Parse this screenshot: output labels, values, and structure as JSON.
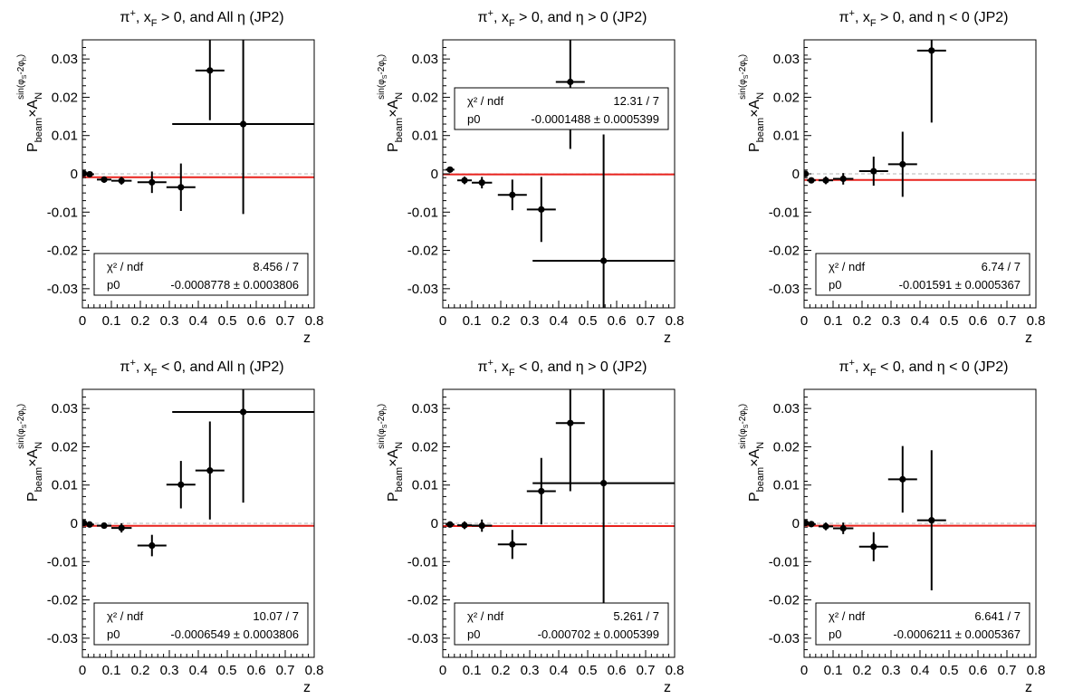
{
  "chart_data": [
    {
      "type": "scatter",
      "title": "π⁺, x_F > 0, and All η (JP2)",
      "title_parts": {
        "particle": "π",
        "particle_sup": "+",
        "var": "x",
        "var_sub": "F",
        "rest": " > 0, and All η (JP2)"
      },
      "xlabel": "z",
      "ylabel": "P_beam×A_N^{sin(φ_S-2φ_h)}",
      "xlim": [
        0,
        0.8
      ],
      "ylim": [
        -0.035,
        0.035
      ],
      "x_ticks": [
        "0",
        "0.1",
        "0.2",
        "0.3",
        "0.4",
        "0.5",
        "0.6",
        "0.7",
        "0.8"
      ],
      "y_ticks": [
        "-0.03",
        "-0.02",
        "-0.01",
        "0",
        "0.01",
        "0.02",
        "0.03"
      ],
      "points": [
        {
          "x": 0.005,
          "y": 0.0001,
          "xerr": 0.005,
          "yerr": 0.0004
        },
        {
          "x": 0.025,
          "y": -0.0001,
          "xerr": 0.015,
          "yerr": 0.0006
        },
        {
          "x": 0.075,
          "y": -0.0015,
          "xerr": 0.025,
          "yerr": 0.0008
        },
        {
          "x": 0.135,
          "y": -0.0018,
          "xerr": 0.035,
          "yerr": 0.001
        },
        {
          "x": 0.24,
          "y": -0.0022,
          "xerr": 0.05,
          "yerr": 0.0028
        },
        {
          "x": 0.34,
          "y": -0.0035,
          "xerr": 0.05,
          "yerr": 0.0062
        },
        {
          "x": 0.44,
          "y": 0.027,
          "xerr": 0.05,
          "yerr": 0.013
        },
        {
          "x": 0.555,
          "y": 0.013,
          "xerr": 0.245,
          "yerr": 0.0235
        }
      ],
      "fit_value": -0.0008778,
      "stats": {
        "chi2_label": "χ² / ndf",
        "chi2_value": "8.456 / 7",
        "p0_label": "p0",
        "p0_value": "-0.0008778 ± 0.0003806",
        "position": "bottom-left"
      }
    },
    {
      "type": "scatter",
      "title": "π⁺, x_F > 0, and η > 0 (JP2)",
      "title_parts": {
        "particle": "π",
        "particle_sup": "+",
        "var": "x",
        "var_sub": "F",
        "rest": " > 0, and η > 0 (JP2)"
      },
      "xlabel": "z",
      "ylabel": "P_beam×A_N^{sin(φ_S-2φ_h)}",
      "xlim": [
        0,
        0.8
      ],
      "ylim": [
        -0.035,
        0.035
      ],
      "x_ticks": [
        "0",
        "0.1",
        "0.2",
        "0.3",
        "0.4",
        "0.5",
        "0.6",
        "0.7",
        "0.8"
      ],
      "y_ticks": [
        "-0.03",
        "-0.02",
        "-0.01",
        "0",
        "0.01",
        "0.02",
        "0.03"
      ],
      "points": [
        {
          "x": 0.025,
          "y": 0.0011,
          "xerr": 0.015,
          "yerr": 0.0006
        },
        {
          "x": 0.075,
          "y": -0.0017,
          "xerr": 0.025,
          "yerr": 0.001
        },
        {
          "x": 0.135,
          "y": -0.0023,
          "xerr": 0.035,
          "yerr": 0.0015
        },
        {
          "x": 0.24,
          "y": -0.0055,
          "xerr": 0.05,
          "yerr": 0.004
        },
        {
          "x": 0.34,
          "y": -0.0093,
          "xerr": 0.05,
          "yerr": 0.0085
        },
        {
          "x": 0.44,
          "y": 0.024,
          "xerr": 0.05,
          "yerr": 0.0175
        },
        {
          "x": 0.555,
          "y": -0.0227,
          "xerr": 0.245,
          "yerr": 0.033
        }
      ],
      "fit_value": -0.0001488,
      "stats": {
        "chi2_label": "χ² / ndf",
        "chi2_value": "12.31 / 7",
        "p0_label": "p0",
        "p0_value": "-0.0001488 ± 0.0005399",
        "position": "top-left"
      }
    },
    {
      "type": "scatter",
      "title": "π⁺, x_F > 0, and η < 0 (JP2)",
      "title_parts": {
        "particle": "π",
        "particle_sup": "+",
        "var": "x",
        "var_sub": "F",
        "rest": " > 0, and η < 0 (JP2)"
      },
      "xlabel": "z",
      "ylabel": "P_beam×A_N^{sin(φ_S-2φ_h)}",
      "xlim": [
        0,
        0.8
      ],
      "ylim": [
        -0.035,
        0.035
      ],
      "x_ticks": [
        "0",
        "0.1",
        "0.2",
        "0.3",
        "0.4",
        "0.5",
        "0.6",
        "0.7",
        "0.8"
      ],
      "y_ticks": [
        "-0.03",
        "-0.02",
        "-0.01",
        "0",
        "0.01",
        "0.02",
        "0.03"
      ],
      "points": [
        {
          "x": 0.005,
          "y": 0.0,
          "xerr": 0.005,
          "yerr": 0.0004
        },
        {
          "x": 0.025,
          "y": -0.0017,
          "xerr": 0.015,
          "yerr": 0.0006
        },
        {
          "x": 0.075,
          "y": -0.0017,
          "xerr": 0.025,
          "yerr": 0.001
        },
        {
          "x": 0.135,
          "y": -0.0013,
          "xerr": 0.035,
          "yerr": 0.0015
        },
        {
          "x": 0.24,
          "y": 0.0007,
          "xerr": 0.05,
          "yerr": 0.0038
        },
        {
          "x": 0.34,
          "y": 0.0025,
          "xerr": 0.05,
          "yerr": 0.0085
        },
        {
          "x": 0.44,
          "y": 0.0322,
          "xerr": 0.05,
          "yerr": 0.0188
        }
      ],
      "fit_value": -0.001591,
      "stats": {
        "chi2_label": "χ² / ndf",
        "chi2_value": "6.74 / 7",
        "p0_label": "p0",
        "p0_value": "-0.001591 ± 0.0005367",
        "position": "bottom-left"
      }
    },
    {
      "type": "scatter",
      "title": "π⁺, x_F < 0, and All η (JP2)",
      "title_parts": {
        "particle": "π",
        "particle_sup": "+",
        "var": "x",
        "var_sub": "F",
        "rest": " < 0, and All η (JP2)"
      },
      "xlabel": "z",
      "ylabel": "P_beam×A_N^{sin(φ_S-2φ_h)}",
      "xlim": [
        0,
        0.8
      ],
      "ylim": [
        -0.035,
        0.035
      ],
      "x_ticks": [
        "0",
        "0.1",
        "0.2",
        "0.3",
        "0.4",
        "0.5",
        "0.6",
        "0.7",
        "0.8"
      ],
      "y_ticks": [
        "-0.03",
        "-0.02",
        "-0.01",
        "0",
        "0.01",
        "0.02",
        "0.03"
      ],
      "points": [
        {
          "x": 0.005,
          "y": 0.0001,
          "xerr": 0.005,
          "yerr": 0.0004
        },
        {
          "x": 0.025,
          "y": -0.0003,
          "xerr": 0.015,
          "yerr": 0.0005
        },
        {
          "x": 0.075,
          "y": -0.0006,
          "xerr": 0.025,
          "yerr": 0.0008
        },
        {
          "x": 0.135,
          "y": -0.0012,
          "xerr": 0.035,
          "yerr": 0.0012
        },
        {
          "x": 0.24,
          "y": -0.0058,
          "xerr": 0.05,
          "yerr": 0.0028
        },
        {
          "x": 0.34,
          "y": 0.0101,
          "xerr": 0.05,
          "yerr": 0.0062
        },
        {
          "x": 0.44,
          "y": 0.0138,
          "xerr": 0.05,
          "yerr": 0.0128
        },
        {
          "x": 0.555,
          "y": 0.0291,
          "xerr": 0.245,
          "yerr": 0.0237
        }
      ],
      "fit_value": -0.0006549,
      "stats": {
        "chi2_label": "χ² / ndf",
        "chi2_value": "10.07 / 7",
        "p0_label": "p0",
        "p0_value": "-0.0006549 ± 0.0003806",
        "position": "bottom-left"
      }
    },
    {
      "type": "scatter",
      "title": "π⁺, x_F < 0, and η > 0 (JP2)",
      "title_parts": {
        "particle": "π",
        "particle_sup": "+",
        "var": "x",
        "var_sub": "F",
        "rest": " < 0, and η > 0 (JP2)"
      },
      "xlabel": "z",
      "ylabel": "P_beam×A_N^{sin(φ_S-2φ_h)}",
      "xlim": [
        0,
        0.8
      ],
      "ylim": [
        -0.035,
        0.035
      ],
      "x_ticks": [
        "0",
        "0.1",
        "0.2",
        "0.3",
        "0.4",
        "0.5",
        "0.6",
        "0.7",
        "0.8"
      ],
      "y_ticks": [
        "-0.03",
        "-0.02",
        "-0.01",
        "0",
        "0.01",
        "0.02",
        "0.03"
      ],
      "points": [
        {
          "x": 0.025,
          "y": -0.0003,
          "xerr": 0.015,
          "yerr": 0.0006
        },
        {
          "x": 0.075,
          "y": -0.0005,
          "xerr": 0.025,
          "yerr": 0.001
        },
        {
          "x": 0.135,
          "y": -0.0006,
          "xerr": 0.035,
          "yerr": 0.0016
        },
        {
          "x": 0.24,
          "y": -0.0055,
          "xerr": 0.05,
          "yerr": 0.0038
        },
        {
          "x": 0.34,
          "y": 0.0084,
          "xerr": 0.05,
          "yerr": 0.0087
        },
        {
          "x": 0.44,
          "y": 0.0262,
          "xerr": 0.05,
          "yerr": 0.0178
        },
        {
          "x": 0.555,
          "y": 0.0105,
          "xerr": 0.245,
          "yerr": 0.0328
        }
      ],
      "fit_value": -0.000702,
      "stats": {
        "chi2_label": "χ² / ndf",
        "chi2_value": "5.261 / 7",
        "p0_label": "p0",
        "p0_value": "-0.000702 ± 0.0005399",
        "position": "bottom-left"
      }
    },
    {
      "type": "scatter",
      "title": "π⁺, x_F < 0, and η < 0 (JP2)",
      "title_parts": {
        "particle": "π",
        "particle_sup": "+",
        "var": "x",
        "var_sub": "F",
        "rest": " < 0, and η < 0 (JP2)"
      },
      "xlabel": "z",
      "ylabel": "P_beam×A_N^{sin(φ_S-2φ_h)}",
      "xlim": [
        0,
        0.8
      ],
      "ylim": [
        -0.035,
        0.035
      ],
      "x_ticks": [
        "0",
        "0.1",
        "0.2",
        "0.3",
        "0.4",
        "0.5",
        "0.6",
        "0.7",
        "0.8"
      ],
      "y_ticks": [
        "-0.03",
        "-0.02",
        "-0.01",
        "0",
        "0.01",
        "0.02",
        "0.03"
      ],
      "points": [
        {
          "x": 0.005,
          "y": 0.0001,
          "xerr": 0.005,
          "yerr": 0.0004
        },
        {
          "x": 0.025,
          "y": -0.0002,
          "xerr": 0.015,
          "yerr": 0.0006
        },
        {
          "x": 0.075,
          "y": -0.0008,
          "xerr": 0.025,
          "yerr": 0.001
        },
        {
          "x": 0.135,
          "y": -0.0013,
          "xerr": 0.035,
          "yerr": 0.0015
        },
        {
          "x": 0.24,
          "y": -0.0061,
          "xerr": 0.05,
          "yerr": 0.0038
        },
        {
          "x": 0.34,
          "y": 0.0115,
          "xerr": 0.05,
          "yerr": 0.0087
        },
        {
          "x": 0.44,
          "y": 0.0008,
          "xerr": 0.05,
          "yerr": 0.0183
        }
      ],
      "fit_value": -0.0006211,
      "stats": {
        "chi2_label": "χ² / ndf",
        "chi2_value": "6.641 / 7",
        "p0_label": "p0",
        "p0_value": "-0.0006211 ± 0.0005367",
        "position": "bottom-left"
      }
    }
  ],
  "colors": {
    "fit_line": "#e8221d",
    "zero_line": "#b4b4b4",
    "markers": "#000000",
    "background": "#ffffff"
  }
}
